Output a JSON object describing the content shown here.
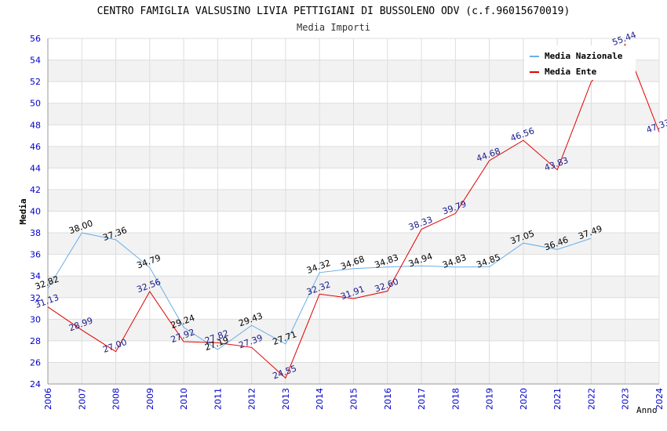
{
  "chart_data": {
    "type": "line",
    "title": "CENTRO FAMIGLIA VALSUSINO LIVIA PETTIGIANI DI BUSSOLENO ODV (c.f.96015670019)",
    "subtitle": "Media Importi",
    "xlabel": "Anno",
    "ylabel": "Media",
    "ylim": [
      24,
      56
    ],
    "ytick_step": 2,
    "grid": true,
    "legend_position": "top-right",
    "x": [
      2006,
      2007,
      2008,
      2009,
      2010,
      2011,
      2012,
      2013,
      2014,
      2015,
      2016,
      2017,
      2018,
      2019,
      2020,
      2021,
      2022,
      2023,
      2024
    ],
    "series": [
      {
        "name": "Media Nazionale",
        "color": "#6aaee8",
        "label_color": "#000000",
        "values": [
          32.82,
          38.0,
          37.36,
          34.79,
          29.24,
          27.19,
          29.43,
          27.71,
          34.32,
          34.68,
          34.83,
          34.94,
          34.83,
          34.85,
          37.05,
          36.46,
          37.49,
          null,
          null
        ],
        "labels": [
          "32.82",
          "38.00",
          "37.36",
          "34.79",
          "29.24",
          "27.19",
          "29.43",
          "27.71",
          "34.32",
          "34.68",
          "34.83",
          "34.94",
          "34.83",
          "34.85",
          "37.05",
          "36.46",
          "37.49",
          null,
          null
        ]
      },
      {
        "name": "Media Ente",
        "color": "#e00000",
        "label_color": "#1a1a8c",
        "values": [
          31.13,
          28.99,
          27.0,
          32.56,
          27.92,
          27.82,
          27.39,
          24.55,
          32.32,
          31.91,
          32.6,
          38.33,
          39.79,
          44.68,
          46.56,
          43.83,
          51.97,
          55.44,
          47.33
        ],
        "labels": [
          "31.13",
          "28.99",
          "27.00",
          "32.56",
          "27.92",
          "27.82",
          "27.39",
          "24.55",
          "32.32",
          "31.91",
          "32.60",
          "38.33",
          "39.79",
          "44.68",
          "46.56",
          "43.83",
          null,
          "55.44",
          "47.33"
        ]
      }
    ]
  },
  "colors": {
    "axis_tick_label": "#0000cc",
    "band": "#f2f2f2",
    "grid": "#dddddd",
    "title": "#000000"
  }
}
